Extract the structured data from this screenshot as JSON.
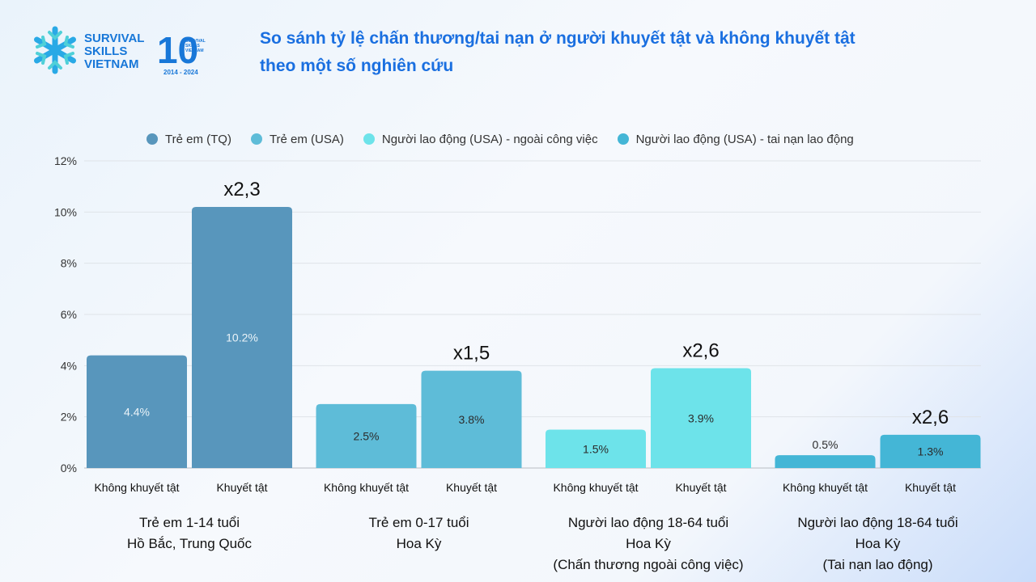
{
  "logo": {
    "line1": "SURVIVAL",
    "line2": "SKILLS",
    "line3": "VIETNAM",
    "badge_number": "10",
    "badge_small_1": "SURVIVAL",
    "badge_small_2": "SKILLS",
    "badge_small_3": "VIETNAM",
    "years": "2014 - 2024",
    "icon": "snowflake-cross-icon"
  },
  "title_line1": "So sánh tỷ lệ chấn thương/tai nạn ở người khuyết tật và không khuyết tật",
  "title_line2": "theo một số nghiên cứu",
  "chart_data": {
    "type": "bar",
    "title": "So sánh tỷ lệ chấn thương/tai nạn ở người khuyết tật và không khuyết tật theo một số nghiên cứu",
    "ylim": [
      0,
      12
    ],
    "yticks": [
      0,
      2,
      4,
      6,
      8,
      10,
      12
    ],
    "ytick_labels": [
      "0%",
      "2%",
      "4%",
      "6%",
      "8%",
      "10%",
      "12%"
    ],
    "grid": true,
    "legend_position": "top",
    "series": [
      {
        "name": "Trẻ em (TQ)",
        "color": "#5896bc"
      },
      {
        "name": "Trẻ em (USA)",
        "color": "#5ebcd8"
      },
      {
        "name": "Người lao động (USA) - ngoài công việc",
        "color": "#6de3ea"
      },
      {
        "name": "Người lao động (USA) - tai nạn lao động",
        "color": "#44b6d6"
      }
    ],
    "groups": [
      {
        "series_index": 0,
        "label_lines": [
          "Trẻ em 1-14 tuổi",
          "Hồ Bắc, Trung Quốc"
        ],
        "bars": [
          {
            "category": "Không khuyết tật",
            "value": 4.4,
            "label": "4.4%"
          },
          {
            "category": "Khuyết tật",
            "value": 10.2,
            "label": "10.2%"
          }
        ],
        "ratio": "x2,3"
      },
      {
        "series_index": 1,
        "label_lines": [
          "Trẻ em 0-17 tuổi",
          "Hoa Kỳ"
        ],
        "bars": [
          {
            "category": "Không khuyết tật",
            "value": 2.5,
            "label": "2.5%"
          },
          {
            "category": "Khuyết tật",
            "value": 3.8,
            "label": "3.8%"
          }
        ],
        "ratio": "x1,5"
      },
      {
        "series_index": 2,
        "label_lines": [
          "Người lao động 18-64 tuổi",
          "Hoa Kỳ",
          "(Chấn thương ngoài công việc)"
        ],
        "bars": [
          {
            "category": "Không khuyết tật",
            "value": 1.5,
            "label": "1.5%"
          },
          {
            "category": "Khuyết tật",
            "value": 3.9,
            "label": "3.9%"
          }
        ],
        "ratio": "x2,6"
      },
      {
        "series_index": 3,
        "label_lines": [
          "Người lao động 18-64 tuổi",
          "Hoa Kỳ",
          "(Tai nạn lao động)"
        ],
        "bars": [
          {
            "category": "Không khuyết tật",
            "value": 0.5,
            "label": "0.5%"
          },
          {
            "category": "Khuyết tật",
            "value": 1.3,
            "label": "1.3%"
          }
        ],
        "ratio": "x2,6"
      }
    ]
  }
}
